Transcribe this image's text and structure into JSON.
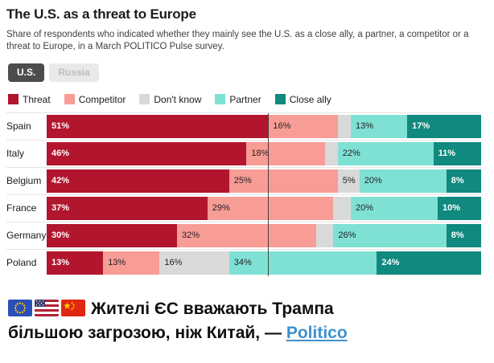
{
  "header": {
    "title": "The U.S. as a threat to Europe",
    "subtitle": "Share of respondents who indicated whether they mainly see the U.S. as a close ally, a partner, a competitor or a threat to Europe, in a March POLITICO Pulse survey."
  },
  "toggles": [
    {
      "label": "U.S.",
      "active": true
    },
    {
      "label": "Russia",
      "active": false
    }
  ],
  "colors": {
    "threat": "#b2152e",
    "competitor": "#f89c96",
    "dont_know": "#d9d9d9",
    "partner": "#7fe1d3",
    "close_ally": "#10897e",
    "toggle_active_bg": "#4d4d4d",
    "toggle_inactive_bg": "#e9e9e9",
    "link": "#4191ce",
    "reference_line": "#2d2d2d"
  },
  "chart_data": {
    "type": "bar",
    "orientation": "horizontal",
    "stacked": true,
    "unit": "%",
    "xlim": [
      0,
      100
    ],
    "grid": "single vertical reference line",
    "reference_line_pct": 51,
    "label_min_value_to_show": 5,
    "legend_position": "top",
    "categories": [
      "Spain",
      "Italy",
      "Belgium",
      "France",
      "Germany",
      "Poland"
    ],
    "series": [
      {
        "name": "Threat",
        "color": "#b2152e",
        "label_color": "#ffffff",
        "label_bold": true,
        "values": [
          51,
          46,
          42,
          37,
          30,
          13
        ]
      },
      {
        "name": "Competitor",
        "color": "#f89c96",
        "label_color": "#1f1f1f",
        "label_bold": false,
        "values": [
          16,
          18,
          25,
          29,
          32,
          13
        ]
      },
      {
        "name": "Don't know",
        "color": "#d9d9d9",
        "label_color": "#1f1f1f",
        "label_bold": false,
        "values": [
          3,
          3,
          5,
          4,
          4,
          16
        ]
      },
      {
        "name": "Partner",
        "color": "#7fe1d3",
        "label_color": "#1f1f1f",
        "label_bold": false,
        "values": [
          13,
          22,
          20,
          20,
          26,
          34
        ]
      },
      {
        "name": "Close ally",
        "color": "#10897e",
        "label_color": "#ffffff",
        "label_bold": true,
        "values": [
          17,
          11,
          8,
          10,
          8,
          24
        ]
      }
    ]
  },
  "caption": {
    "flag_icons": [
      "eu-flag-icon",
      "us-flag-icon",
      "china-flag-icon"
    ],
    "line1": "Жителі ЄС вважають Трампа",
    "line2": "більшою загрозою, ніж Китай, — ",
    "link_text": "Politico"
  }
}
